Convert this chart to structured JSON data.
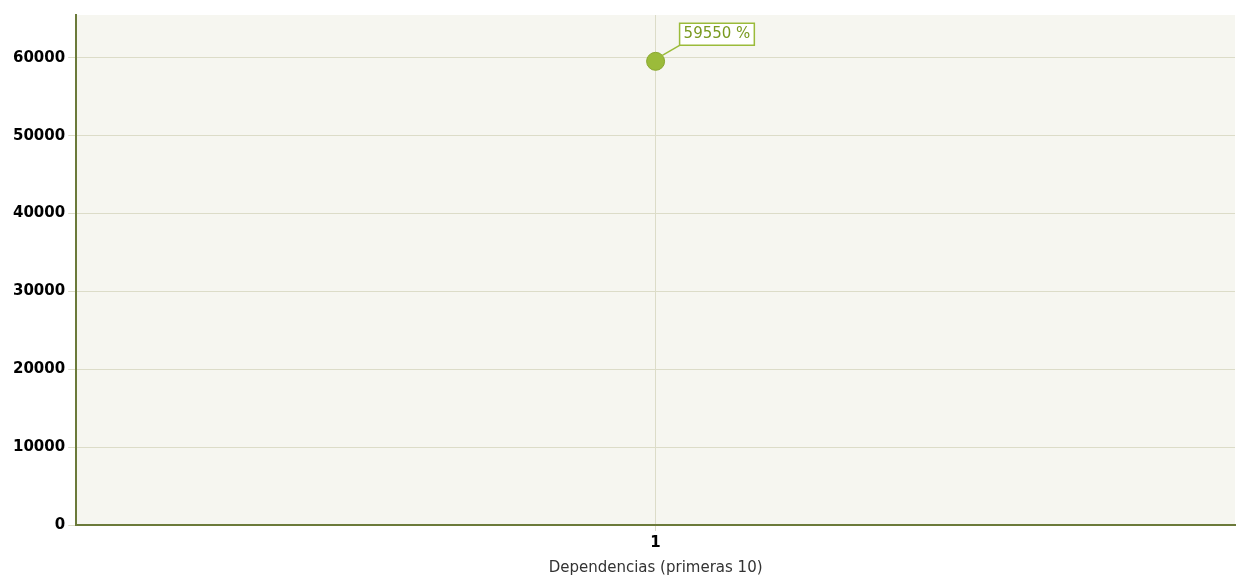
{
  "chart_data": {
    "type": "line",
    "xlabel": "Dependencias (primeras 10)",
    "categories": [
      "1"
    ],
    "series": [
      {
        "color": "#9bbb3a",
        "values": [
          59550
        ],
        "value_labels": [
          "59550 %"
        ]
      }
    ],
    "ylim": [
      0,
      65500
    ],
    "yticks": [
      0,
      10000,
      20000,
      30000,
      40000,
      50000,
      60000
    ],
    "grid": true,
    "marker": "circle",
    "legend": false
  }
}
